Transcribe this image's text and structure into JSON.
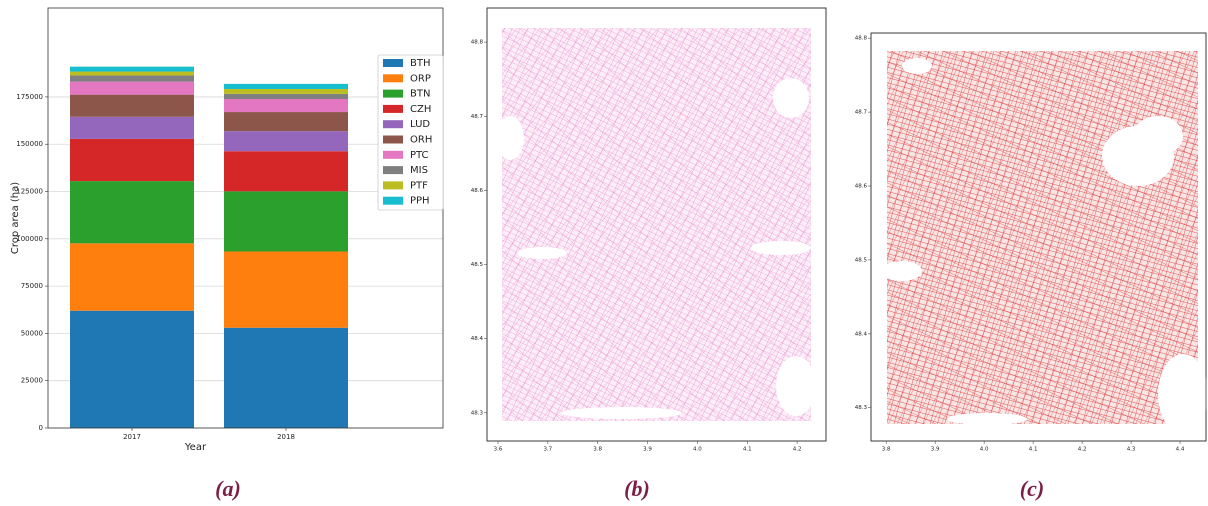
{
  "chart_data": [
    {
      "type": "bar",
      "stacked": true,
      "caption": "(a)",
      "xlabel": "Year",
      "ylabel": "Crop area (ha)",
      "categories": [
        "2017",
        "2018"
      ],
      "series": [
        {
          "name": "BTH",
          "color": "#1f77b4",
          "values": [
            62000,
            53000
          ]
        },
        {
          "name": "ORP",
          "color": "#ff7f0e",
          "values": [
            35600,
            40300
          ]
        },
        {
          "name": "BTN",
          "color": "#2ca02c",
          "values": [
            32900,
            31800
          ]
        },
        {
          "name": "CZH",
          "color": "#d62728",
          "values": [
            22300,
            21200
          ]
        },
        {
          "name": "LUD",
          "color": "#9467bd",
          "values": [
            11700,
            10600
          ]
        },
        {
          "name": "ORH",
          "color": "#8c564b",
          "values": [
            11700,
            10100
          ]
        },
        {
          "name": "PTC",
          "color": "#e377c2",
          "values": [
            6900,
            6900
          ]
        },
        {
          "name": "MIS",
          "color": "#7f7f7f",
          "values": [
            3200,
            2700
          ]
        },
        {
          "name": "PTF",
          "color": "#bcbd22",
          "values": [
            2100,
            2600
          ]
        },
        {
          "name": "PPH",
          "color": "#17becf",
          "values": [
            2600,
            2700
          ]
        }
      ],
      "ylim": [
        0,
        222000
      ],
      "yticks": [
        0,
        25000,
        50000,
        75000,
        100000,
        125000,
        150000,
        175000
      ],
      "grid": true,
      "legend": "upper right"
    },
    {
      "type": "map",
      "caption": "(b)",
      "color": "#e377c2",
      "xlim": [
        3.578,
        4.258
      ],
      "ylim": [
        48.262,
        48.846
      ],
      "xticks": [
        3.6,
        3.7,
        3.8,
        3.9,
        {
          "value": 4,
          "label": "4.0"
        },
        4.1,
        4.2
      ],
      "yticks": [
        48.3,
        48.4,
        48.5,
        48.6,
        48.7,
        48.8
      ]
    },
    {
      "type": "map",
      "caption": "(c)",
      "color": "#d62728",
      "xlim": [
        3.769,
        4.453
      ],
      "ylim": [
        48.255,
        48.807
      ],
      "xticks": [
        3.8,
        3.9,
        {
          "value": 4,
          "label": "4.0"
        },
        4.1,
        4.2,
        4.3,
        4.4
      ],
      "yticks": [
        48.3,
        48.4,
        48.5,
        48.6,
        48.7,
        48.8
      ]
    }
  ]
}
